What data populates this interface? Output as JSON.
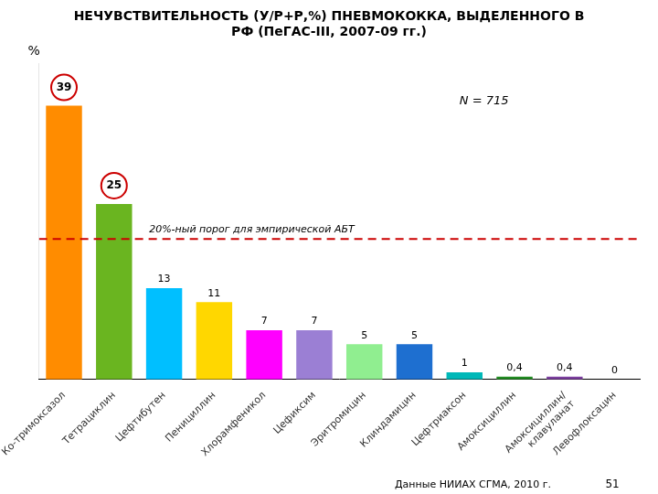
{
  "chart_data": {
    "type": "bar",
    "title": [
      "НЕЧУВСТВИТЕЛЬНОСТЬ (У/Р+Р,%) ПНЕВМОКОККА, ВЫДЕЛЕННОГО В",
      "РФ (ПеГАС-III, 2007-09 гг.)"
    ],
    "y_label": "%",
    "categories": [
      "Ко-тримоксазол",
      "Тетрациклин",
      "Цефтибутен",
      "Пенициллин",
      "Хлорамфеникол",
      "Цефиксим",
      "Эритромицин",
      "Клиндамицин",
      "Цефтриаксон",
      "Амоксициллин",
      "Амоксициллин/\nклавуланат",
      "Левофлоксацин"
    ],
    "values": [
      39,
      25,
      13,
      11,
      7,
      7,
      5,
      5,
      1,
      0.4,
      0.4,
      0
    ],
    "value_labels": [
      "39",
      "25",
      "13",
      "11",
      "7",
      "7",
      "5",
      "5",
      "1",
      "0,4",
      "0,4",
      "0"
    ],
    "colors": [
      "#FF8C00",
      "#6AB520",
      "#00BFFF",
      "#FFD700",
      "#FF00FF",
      "#9B7FD4",
      "#90EE90",
      "#1E6FD0",
      "#00B8B8",
      "#228B22",
      "#7B3F9E",
      "#CD853F"
    ],
    "data_labels": true,
    "threshold": {
      "value": 20,
      "label": "20%-ный порог для эмпирической АБТ",
      "color": "#CC0000"
    },
    "annotations": [
      {
        "text": "N = 715"
      }
    ],
    "footer": "Данные НИИАХ СГМА, 2010 г.",
    "page_number": "51",
    "ylim": [
      0,
      45
    ],
    "yticks": [],
    "grid": false,
    "tick_labels": "x"
  }
}
